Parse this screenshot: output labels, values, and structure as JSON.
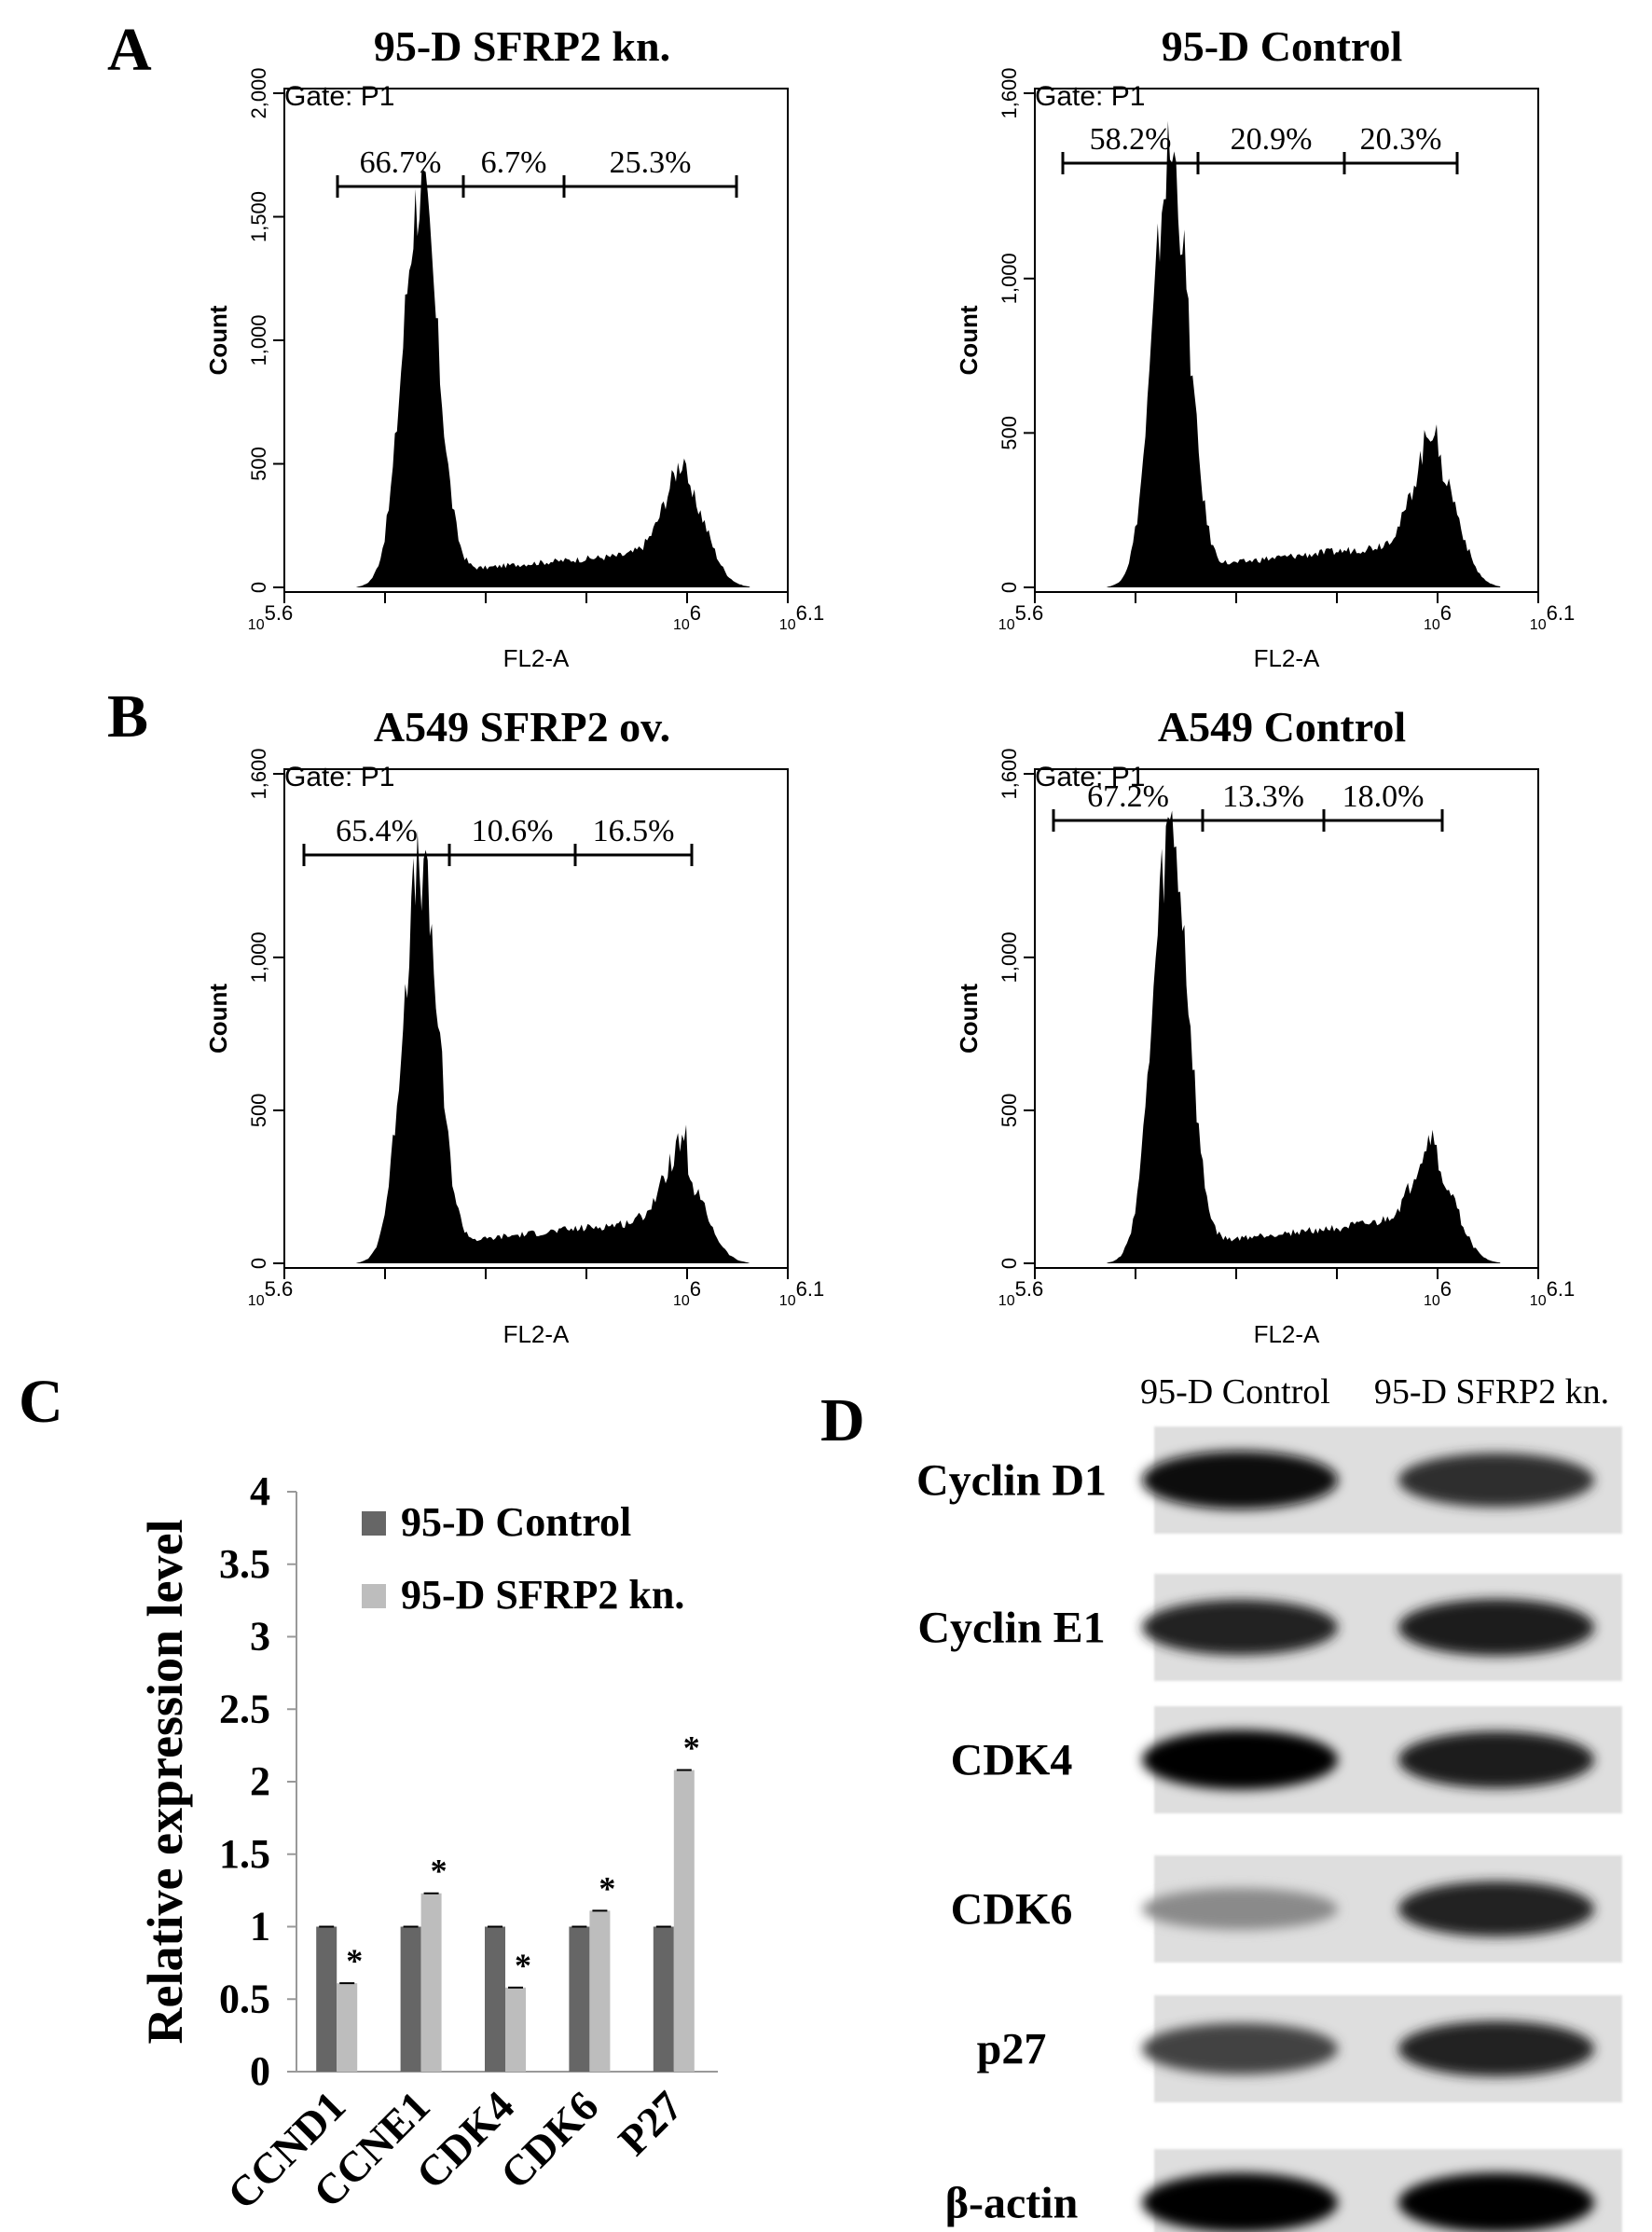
{
  "panels": [
    {
      "letter": "A",
      "histograms": [
        {
          "title": "95-D SFRP2 kn.",
          "gate": "Gate: P1",
          "ylabel": "Count",
          "xlabel": "FL2-A",
          "yticks": [
            "0",
            "500",
            "1,000",
            "1,500",
            "2,000"
          ],
          "ymax": 2000,
          "xtick_labels": [
            "10^5.6",
            "10^6",
            "10^6.1"
          ],
          "gate_percentages": [
            "66.7%",
            "6.7%",
            "25.3%"
          ],
          "peaks": {
            "g1_height": 1600,
            "g2_height": 380
          }
        },
        {
          "title": "95-D Control",
          "gate": "Gate: P1",
          "ylabel": "Count",
          "xlabel": "FL2-A",
          "yticks": [
            "0",
            "500",
            "1,000",
            "1,600"
          ],
          "ymax": 1600,
          "xtick_labels": [
            "10^5.6",
            "10^6",
            "10^6.1"
          ],
          "gate_percentages": [
            "58.2%",
            "20.9%",
            "20.3%"
          ],
          "peaks": {
            "g1_height": 1400,
            "g2_height": 390
          }
        }
      ]
    },
    {
      "letter": "B",
      "histograms": [
        {
          "title": "A549 SFRP2 ov.",
          "gate": "Gate: P1",
          "ylabel": "Count",
          "xlabel": "FL2-A",
          "yticks": [
            "0",
            "500",
            "1,000",
            "1,600"
          ],
          "ymax": 1600,
          "xtick_labels": [
            "10^5.6",
            "10^6",
            "10^6.1"
          ],
          "gate_percentages": [
            "65.4%",
            "10.6%",
            "16.5%"
          ],
          "peaks": {
            "g1_height": 1290,
            "g2_height": 260
          }
        },
        {
          "title": "A549 Control",
          "gate": "Gate: P1",
          "ylabel": "Count",
          "xlabel": "FL2-A",
          "yticks": [
            "0",
            "500",
            "1,000",
            "1,600"
          ],
          "ymax": 1600,
          "xtick_labels": [
            "10^5.6",
            "10^6",
            "10^6.1"
          ],
          "gate_percentages": [
            "67.2%",
            "13.3%",
            "18.0%"
          ],
          "peaks": {
            "g1_height": 1390,
            "g2_height": 280
          }
        }
      ]
    }
  ],
  "chart_data": {
    "letter": "C",
    "type": "bar",
    "categories": [
      "CCND1",
      "CCNE1",
      "CDK4",
      "CDK6",
      "P27"
    ],
    "series": [
      {
        "name": "95-D Control",
        "values": [
          1.0,
          1.0,
          1.0,
          1.0,
          1.0
        ],
        "color": "#666666"
      },
      {
        "name": "95-D SFRP2 kn.",
        "values": [
          0.61,
          1.23,
          0.58,
          1.11,
          2.08
        ],
        "color": "#bdbdbd"
      }
    ],
    "significance": [
      "*",
      "*",
      "*",
      "*",
      "*"
    ],
    "ylabel": "Relative expression level",
    "ylim": [
      0,
      4
    ],
    "yticks": [
      "0",
      "0.5",
      "1",
      "1.5",
      "2",
      "2.5",
      "3",
      "3.5",
      "4"
    ],
    "grid": false,
    "legend": "top-right"
  },
  "blot": {
    "letter": "D",
    "lane_labels": [
      "95-D Control",
      "95-D SFRP2 kn."
    ],
    "rows": [
      {
        "label": "Cyclin D1",
        "intensity": [
          0.95,
          0.8
        ]
      },
      {
        "label": "Cyclin E1",
        "intensity": [
          0.85,
          0.9
        ]
      },
      {
        "label": "CDK4",
        "intensity": [
          1.0,
          0.9
        ]
      },
      {
        "label": "CDK6",
        "intensity": [
          0.35,
          0.85
        ]
      },
      {
        "label": "p27",
        "intensity": [
          0.7,
          0.85
        ]
      },
      {
        "label": "β-actin",
        "intensity": [
          1.0,
          1.0
        ]
      }
    ]
  }
}
